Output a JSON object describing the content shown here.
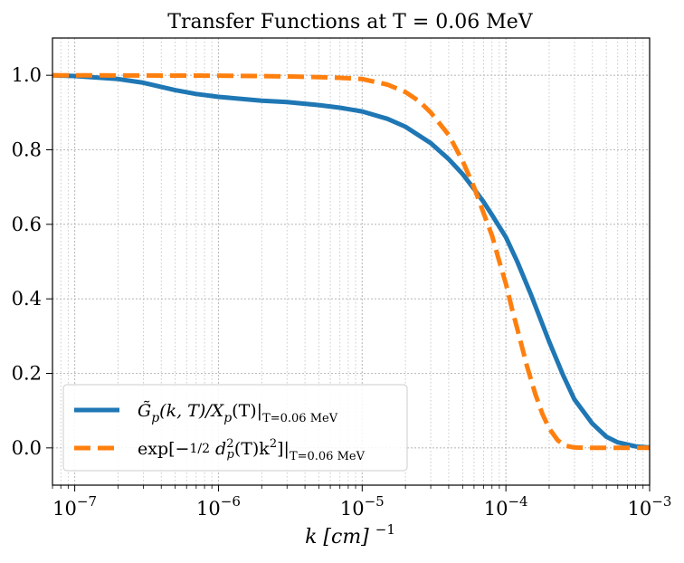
{
  "chart_data": {
    "type": "line",
    "title": "Transfer Functions at T = 0.06 MeV",
    "xlabel": "k [cm]",
    "xlabel_exponent": "−1",
    "ylabel": "",
    "xscale": "log",
    "xlim": [
      7e-08,
      0.001
    ],
    "ylim": [
      -0.1,
      1.1
    ],
    "grid": true,
    "legend_position": "lower-left",
    "x_ticks": [
      {
        "value": 1e-07,
        "base": "10",
        "exp": "−7"
      },
      {
        "value": 1e-06,
        "base": "10",
        "exp": "−6"
      },
      {
        "value": 1e-05,
        "base": "10",
        "exp": "−5"
      },
      {
        "value": 0.0001,
        "base": "10",
        "exp": "−4"
      },
      {
        "value": 0.001,
        "base": "10",
        "exp": "−3"
      }
    ],
    "y_ticks": [
      {
        "value": 0.0,
        "label": "0.0"
      },
      {
        "value": 0.2,
        "label": "0.2"
      },
      {
        "value": 0.4,
        "label": "0.4"
      },
      {
        "value": 0.6,
        "label": "0.6"
      },
      {
        "value": 0.8,
        "label": "0.8"
      },
      {
        "value": 1.0,
        "label": "1.0"
      }
    ],
    "series": [
      {
        "name": "G̃p(k, T)/Xp(T)|T=0.06 MeV",
        "legend_main": "G̃",
        "legend_sub": "p",
        "legend_mid": "(k, T)/X",
        "legend_sub2": "p",
        "legend_end": "(T)|",
        "legend_eval": "T=0.06 MeV",
        "color": "#1f77b4",
        "style": "solid",
        "x": [
          7e-08,
          1e-07,
          2e-07,
          3e-07,
          5e-07,
          7e-07,
          1e-06,
          2e-06,
          3e-06,
          5e-06,
          7e-06,
          1e-05,
          1.5e-05,
          2e-05,
          3e-05,
          4e-05,
          5e-05,
          6e-05,
          7e-05,
          8e-05,
          0.0001,
          0.00012,
          0.00015,
          0.0002,
          0.00025,
          0.0003,
          0.0004,
          0.0005,
          0.0006,
          0.0008,
          0.001
        ],
        "y": [
          1.0,
          0.998,
          0.99,
          0.98,
          0.96,
          0.95,
          0.942,
          0.932,
          0.928,
          0.92,
          0.913,
          0.903,
          0.883,
          0.862,
          0.818,
          0.775,
          0.735,
          0.695,
          0.66,
          0.625,
          0.565,
          0.5,
          0.41,
          0.285,
          0.195,
          0.13,
          0.065,
          0.03,
          0.015,
          0.004,
          0.001
        ]
      },
      {
        "name": "exp[−½ dp²(T)k²]|T=0.06 MeV",
        "legend_main": "exp[−",
        "legend_frac_num": "1",
        "legend_frac_den": "2",
        "legend_d": "d",
        "legend_d_sup": "2",
        "legend_d_sub": "p",
        "legend_mid": "(T)k",
        "legend_k_sup": "2",
        "legend_end": "]|",
        "legend_eval": "T=0.06 MeV",
        "color": "#ff7f0e",
        "style": "dashed",
        "x": [
          7e-08,
          1e-07,
          1e-06,
          3e-06,
          5e-06,
          7e-06,
          1e-05,
          1.5e-05,
          2e-05,
          2.5e-05,
          3e-05,
          4e-05,
          5e-05,
          6e-05,
          7e-05,
          8e-05,
          9e-05,
          0.0001,
          0.00011,
          0.00012,
          0.00014,
          0.00016,
          0.00018,
          0.0002,
          0.00023,
          0.00026,
          0.0003,
          0.0004,
          0.0005,
          0.001
        ],
        "y": [
          1.0,
          1.0,
          0.999,
          0.997,
          0.995,
          0.993,
          0.99,
          0.975,
          0.955,
          0.93,
          0.9,
          0.84,
          0.77,
          0.7,
          0.63,
          0.57,
          0.5,
          0.44,
          0.375,
          0.32,
          0.22,
          0.145,
          0.09,
          0.052,
          0.02,
          0.006,
          0.001,
          0.0,
          0.0,
          0.0
        ]
      }
    ]
  }
}
